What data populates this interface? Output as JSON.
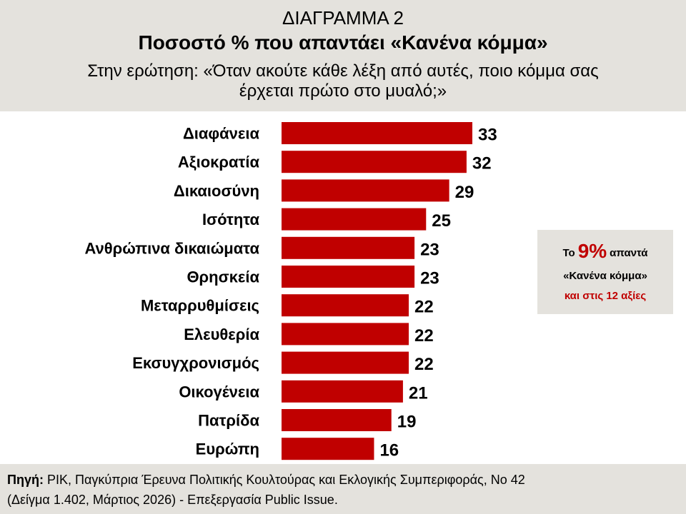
{
  "header": {
    "title": "ΔΙΑΓΡΑΜΜΑ 2",
    "subtitle": "Ποσοστό % που απαντάει «Κανένα κόμμα»",
    "question_line1": "Στην ερώτηση: «Όταν ακούτε κάθε λέξη από αυτές, ποιο κόμμα σας",
    "question_line2": "έρχεται πρώτο στο μυαλό;»"
  },
  "chart_data": {
    "type": "bar",
    "orientation": "horizontal",
    "categories": [
      "Διαφάνεια",
      "Αξιοκρατία",
      "Δικαιοσύνη",
      "Ισότητα",
      "Ανθρώπινα δικαιώματα",
      "Θρησκεία",
      "Μεταρρυθμίσεις",
      "Ελευθερία",
      "Εκσυγχρονισμός",
      "Οικογένεια",
      "Πατρίδα",
      "Ευρώπη"
    ],
    "values": [
      33,
      32,
      29,
      25,
      23,
      23,
      22,
      22,
      22,
      21,
      19,
      16
    ],
    "title": "Ποσοστό % που απαντάει «Κανένα κόμμα»",
    "xlim": [
      0,
      33
    ],
    "bar_color": "#c00000",
    "grid": false,
    "data_labels": true
  },
  "note": {
    "prefix": "Το",
    "percent": "9%",
    "suffix": "απαντά",
    "line2": "«Κανένα κόμμα»",
    "line3": "και στις 12 αξίες",
    "accent_color": "#c00000"
  },
  "footer": {
    "source_label": "Πηγή:",
    "source_text": " ΡΙΚ, Παγκύπρια Έρευνα Πολιτικής Κουλτούρας και Εκλογικής Συμπεριφοράς, Νο 42",
    "line2": "(Δείγμα 1.402, Μάρτιος 2026) - Επεξεργασία Public Issue."
  },
  "colors": {
    "panel_background": "#e4e2dd",
    "bar": "#c00000",
    "accent": "#c00000"
  }
}
